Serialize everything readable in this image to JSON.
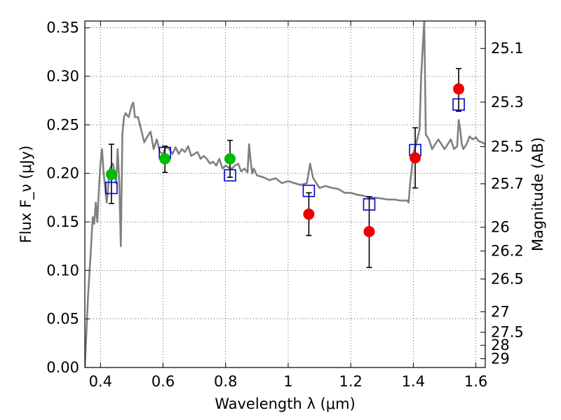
{
  "chart_data": {
    "type": "scatter",
    "xlabel": "Wavelength λ (μm)",
    "ylabel": "Flux F_ν (μJy)",
    "ylabel_right": "Magnitude (AB)",
    "xlim": [
      0.35,
      1.63
    ],
    "ylim": [
      0.0,
      0.357
    ],
    "grid": true,
    "x_ticks": [
      0.4,
      0.6,
      0.8,
      1.0,
      1.2,
      1.4,
      1.6
    ],
    "x_tick_labels": [
      "0.4",
      "0.6",
      "0.8",
      "1",
      "1.2",
      "1.4",
      "1.6"
    ],
    "y_ticks": [
      0.0,
      0.05,
      0.1,
      0.15,
      0.2,
      0.25,
      0.3,
      0.35
    ],
    "y_tick_labels": [
      "0.00",
      "0.05",
      "0.10",
      "0.15",
      "0.20",
      "0.25",
      "0.30",
      "0.35"
    ],
    "mag_ticks": [
      {
        "label": "25.1",
        "flux": 0.3287
      },
      {
        "label": "25.3",
        "flux": 0.2734
      },
      {
        "label": "25.5",
        "flux": 0.2275
      },
      {
        "label": "25.7",
        "flux": 0.1892
      },
      {
        "label": "26",
        "flux": 0.1445
      },
      {
        "label": "26.2",
        "flux": 0.12
      },
      {
        "label": "26.5",
        "flux": 0.0912
      },
      {
        "label": "27",
        "flux": 0.0575
      },
      {
        "label": "27.5",
        "flux": 0.0363
      },
      {
        "label": "28",
        "flux": 0.0229
      },
      {
        "label": "29",
        "flux": 0.0091
      }
    ],
    "colors": {
      "template": "#808080",
      "green": "#00bb00",
      "red": "#ee0000",
      "model_box": "#0000cc",
      "errorbar": "#000000"
    },
    "series": [
      {
        "marker": "circle",
        "color": "#00bb00",
        "points": [
          {
            "x": 0.435,
            "y": 0.199,
            "lo": 0.169,
            "hi": 0.23
          },
          {
            "x": 0.606,
            "y": 0.215,
            "lo": 0.201,
            "hi": 0.228
          },
          {
            "x": 0.814,
            "y": 0.215,
            "lo": 0.196,
            "hi": 0.234
          }
        ]
      },
      {
        "marker": "circle",
        "color": "#ee0000",
        "points": [
          {
            "x": 1.066,
            "y": 0.158,
            "lo": 0.136,
            "hi": 0.18
          },
          {
            "x": 1.259,
            "y": 0.14,
            "lo": 0.103,
            "hi": 0.176
          },
          {
            "x": 1.406,
            "y": 0.216,
            "lo": 0.185,
            "hi": 0.247
          },
          {
            "x": 1.545,
            "y": 0.287,
            "lo": 0.264,
            "hi": 0.308
          }
        ]
      },
      {
        "marker": "open-square",
        "color": "#0000cc",
        "points": [
          {
            "x": 0.435,
            "y": 0.185
          },
          {
            "x": 0.606,
            "y": 0.221
          },
          {
            "x": 0.814,
            "y": 0.198
          },
          {
            "x": 1.066,
            "y": 0.182
          },
          {
            "x": 1.259,
            "y": 0.168
          },
          {
            "x": 1.406,
            "y": 0.224
          },
          {
            "x": 1.545,
            "y": 0.271
          }
        ]
      }
    ],
    "template_spectrum": {
      "x": [
        0.35,
        0.36,
        0.37,
        0.375,
        0.38,
        0.385,
        0.39,
        0.395,
        0.4,
        0.405,
        0.41,
        0.42,
        0.43,
        0.44,
        0.45,
        0.455,
        0.46,
        0.465,
        0.47,
        0.475,
        0.48,
        0.49,
        0.5,
        0.505,
        0.51,
        0.52,
        0.53,
        0.54,
        0.55,
        0.56,
        0.57,
        0.58,
        0.59,
        0.6,
        0.61,
        0.62,
        0.63,
        0.64,
        0.65,
        0.66,
        0.67,
        0.68,
        0.69,
        0.7,
        0.71,
        0.72,
        0.73,
        0.74,
        0.75,
        0.76,
        0.77,
        0.78,
        0.79,
        0.8,
        0.81,
        0.82,
        0.83,
        0.84,
        0.85,
        0.86,
        0.87,
        0.875,
        0.88,
        0.885,
        0.89,
        0.9,
        0.92,
        0.94,
        0.96,
        0.98,
        1.0,
        1.02,
        1.04,
        1.06,
        1.07,
        1.08,
        1.09,
        1.1,
        1.12,
        1.14,
        1.16,
        1.18,
        1.2,
        1.22,
        1.24,
        1.26,
        1.28,
        1.3,
        1.32,
        1.34,
        1.36,
        1.38,
        1.385,
        1.39,
        1.395,
        1.4,
        1.41,
        1.42,
        1.425,
        1.43,
        1.435,
        1.44,
        1.45,
        1.46,
        1.47,
        1.48,
        1.49,
        1.5,
        1.51,
        1.52,
        1.53,
        1.54,
        1.545,
        1.55,
        1.555,
        1.56,
        1.57,
        1.58,
        1.59,
        1.6,
        1.61,
        1.62,
        1.63
      ],
      "y": [
        0.0,
        0.073,
        0.125,
        0.155,
        0.148,
        0.17,
        0.15,
        0.185,
        0.21,
        0.225,
        0.2,
        0.17,
        0.205,
        0.21,
        0.19,
        0.225,
        0.19,
        0.125,
        0.24,
        0.258,
        0.262,
        0.258,
        0.27,
        0.273,
        0.258,
        0.258,
        0.245,
        0.232,
        0.238,
        0.243,
        0.225,
        0.235,
        0.222,
        0.22,
        0.228,
        0.225,
        0.22,
        0.227,
        0.22,
        0.225,
        0.222,
        0.228,
        0.218,
        0.22,
        0.222,
        0.215,
        0.218,
        0.215,
        0.21,
        0.212,
        0.208,
        0.215,
        0.205,
        0.208,
        0.206,
        0.205,
        0.208,
        0.21,
        0.202,
        0.205,
        0.201,
        0.23,
        0.213,
        0.2,
        0.205,
        0.198,
        0.196,
        0.193,
        0.195,
        0.19,
        0.192,
        0.19,
        0.188,
        0.19,
        0.21,
        0.195,
        0.19,
        0.185,
        0.187,
        0.185,
        0.184,
        0.18,
        0.18,
        0.178,
        0.177,
        0.175,
        0.175,
        0.174,
        0.173,
        0.173,
        0.172,
        0.172,
        0.17,
        0.19,
        0.205,
        0.22,
        0.232,
        0.245,
        0.3,
        0.33,
        0.357,
        0.24,
        0.235,
        0.225,
        0.23,
        0.235,
        0.23,
        0.225,
        0.23,
        0.235,
        0.225,
        0.228,
        0.255,
        0.245,
        0.23,
        0.225,
        0.23,
        0.238,
        0.235,
        0.237,
        0.233,
        0.232,
        0.23
      ]
    }
  }
}
